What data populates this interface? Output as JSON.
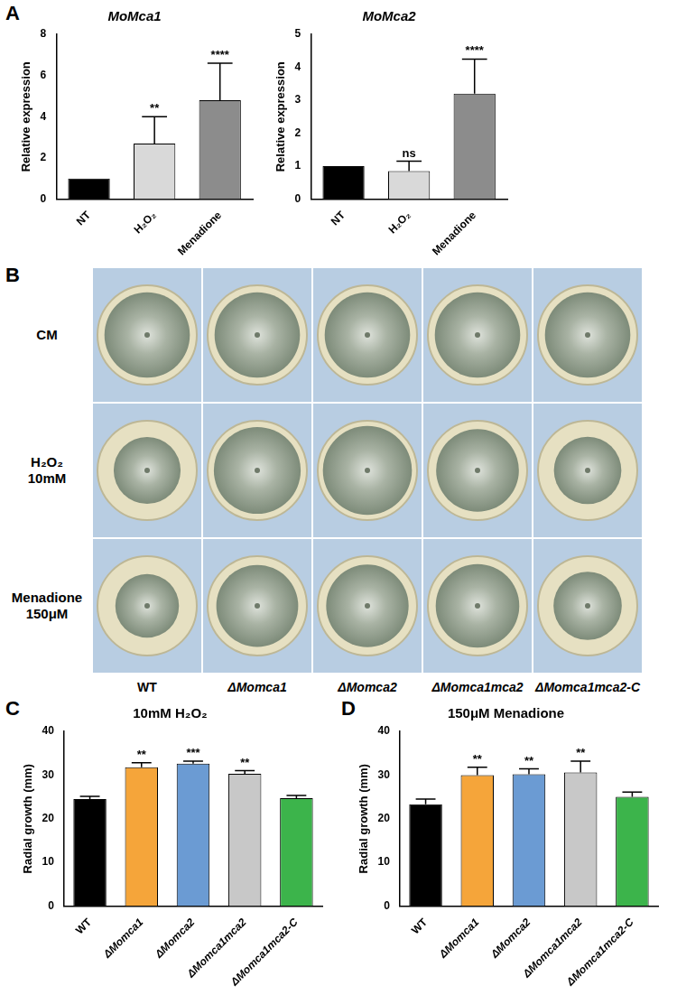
{
  "chart_data": [
    {
      "type": "bar",
      "title": "MoMca1",
      "y_label": "Relative expression",
      "categories": [
        "NT",
        "H₂O₂",
        "Menadione"
      ],
      "values": [
        1,
        2.7,
        4.8
      ],
      "errors": [
        0,
        1.3,
        1.8
      ],
      "significance": [
        null,
        "**",
        "****"
      ],
      "colors": [
        "#000000",
        "#d9d9d9",
        "#8c8c8c"
      ],
      "ylim": [
        0,
        8
      ],
      "yticks": [
        0,
        2,
        4,
        6,
        8
      ],
      "grid": false
    },
    {
      "type": "bar",
      "title": "MoMca2",
      "y_label": "Relative expression",
      "categories": [
        "NT",
        "H₂O₂",
        "Menadione"
      ],
      "values": [
        1,
        0.85,
        3.2
      ],
      "errors": [
        0,
        0.3,
        1.05
      ],
      "significance": [
        null,
        "ns",
        "****"
      ],
      "colors": [
        "#000000",
        "#d9d9d9",
        "#8c8c8c"
      ],
      "ylim": [
        0,
        5
      ],
      "yticks": [
        0,
        1,
        2,
        3,
        4,
        5
      ],
      "grid": false
    },
    {
      "type": "bar",
      "title": "10mM H₂O₂",
      "y_label": "Radial growth (mm)",
      "categories": [
        "WT",
        "ΔMomca1",
        "ΔMomca2",
        "ΔMomca1mca2",
        "ΔMomca1mca2-C"
      ],
      "values": [
        24.5,
        31.8,
        32.6,
        30.3,
        24.7
      ],
      "errors": [
        0.6,
        1.0,
        0.6,
        0.7,
        0.6
      ],
      "significance": [
        null,
        "**",
        "***",
        "**",
        null
      ],
      "colors": [
        "#000000",
        "#f5a53a",
        "#6b9bd3",
        "#c8c8c8",
        "#3cb44b"
      ],
      "ylim": [
        0,
        40
      ],
      "yticks": [
        0,
        10,
        20,
        30,
        40
      ],
      "grid": false
    },
    {
      "type": "bar",
      "title": "150μM Menadione",
      "y_label": "Radial growth (mm)",
      "categories": [
        "WT",
        "ΔMomca1",
        "ΔMomca2",
        "ΔMomca1mca2",
        "ΔMomca1mca2-C"
      ],
      "values": [
        23.3,
        30.0,
        30.2,
        30.6,
        25.0
      ],
      "errors": [
        1.2,
        1.8,
        1.2,
        2.6,
        1.1
      ],
      "significance": [
        null,
        "**",
        "**",
        "**",
        null
      ],
      "colors": [
        "#000000",
        "#f5a53a",
        "#6b9bd3",
        "#c8c8c8",
        "#3cb44b"
      ],
      "ylim": [
        0,
        40
      ],
      "yticks": [
        0,
        10,
        20,
        30,
        40
      ],
      "grid": false
    }
  ],
  "figure": {
    "panel_letters": [
      "A",
      "B",
      "C",
      "D"
    ],
    "plates": {
      "rows": [
        [
          "CM"
        ],
        [
          "H₂O₂",
          "10mM"
        ],
        [
          "Menadione",
          "150μM"
        ]
      ],
      "columns": [
        "WT",
        "ΔMomca1",
        "ΔMomca2",
        "ΔMomca1mca2",
        "ΔMomca1mca2-C"
      ]
    }
  }
}
